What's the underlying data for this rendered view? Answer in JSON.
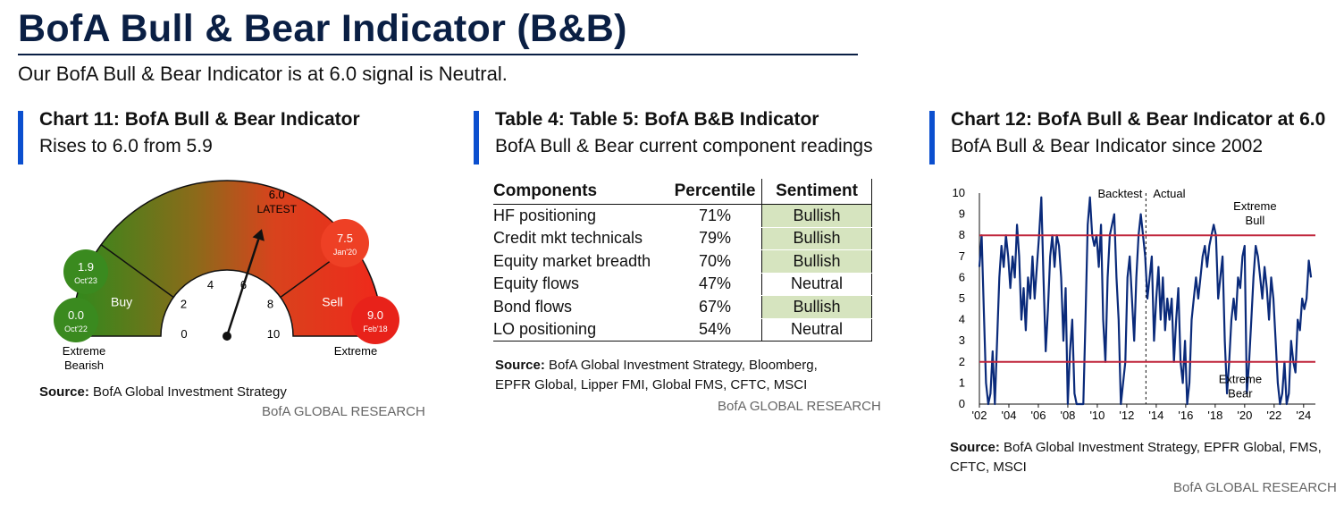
{
  "page": {
    "title": "BofA Bull & Bear Indicator (B&B)",
    "subtitle": "Our BofA Bull & Bear Indicator is at 6.0 signal is Neutral."
  },
  "panels": [
    {
      "title": "Chart 11: BofA Bull & Bear Indicator",
      "subtitle": "Rises to 6.0 from 5.9",
      "source_label": "Source:",
      "source_text": "BofA Global Investment Strategy",
      "brand": "BofA GLOBAL RESEARCH"
    },
    {
      "title": "Table 4: Table 5: BofA B&B Indicator",
      "subtitle": "BofA Bull & Bear current component readings",
      "source_label": "Source:",
      "source_text": "BofA Global Investment Strategy, Bloomberg, EPFR Global, Lipper FMI, Global FMS, CFTC, MSCI",
      "brand": "BofA GLOBAL RESEARCH"
    },
    {
      "title": "Chart 12: BofA Bull & Bear Indicator at 6.0",
      "subtitle": "BofA Bull & Bear Indicator since 2002",
      "source_label": "Source:",
      "source_text": "BofA Global Investment Strategy, EPFR Global, FMS, CFTC, MSCI",
      "brand": "BofA GLOBAL RESEARCH"
    }
  ],
  "colors": {
    "title": "#0a1f44",
    "accent_bar": "#0b4fcf",
    "bullish_cell": "#d6e4bf",
    "green": "#3a8a1f",
    "red": "#e8221a",
    "series_line": "#0a2a7a",
    "threshold_line": "#c0263c"
  },
  "chart_data": [
    {
      "type": "gauge",
      "value": 6.0,
      "value_label": "6.0",
      "value_caption": "LATEST",
      "range": [
        0,
        10
      ],
      "ticks": [
        "0",
        "2",
        "4",
        "6",
        "8",
        "10"
      ],
      "zones": [
        {
          "label": "Buy",
          "range": [
            0,
            2
          ],
          "caption": "Extreme Bearish"
        },
        {
          "label": "Sell",
          "range": [
            8,
            10
          ],
          "caption": "Extreme"
        }
      ],
      "markers": [
        {
          "value": "1.9",
          "date": "Oct'23",
          "color": "#3a8a1f"
        },
        {
          "value": "0.0",
          "date": "Oct'22",
          "color": "#3a8a1f"
        },
        {
          "value": "7.5",
          "date": "Jan'20",
          "color": "#ee4025"
        },
        {
          "value": "9.0",
          "date": "Feb'18",
          "color": "#e8221a"
        }
      ]
    },
    {
      "type": "table",
      "columns": [
        "Components",
        "Percentile",
        "Sentiment"
      ],
      "rows": [
        {
          "component": "HF positioning",
          "percentile": "71%",
          "sentiment": "Bullish"
        },
        {
          "component": "Credit mkt technicals",
          "percentile": "79%",
          "sentiment": "Bullish"
        },
        {
          "component": "Equity market breadth",
          "percentile": "70%",
          "sentiment": "Bullish"
        },
        {
          "component": "Equity flows",
          "percentile": "47%",
          "sentiment": "Neutral"
        },
        {
          "component": "Bond flows",
          "percentile": "67%",
          "sentiment": "Bullish"
        },
        {
          "component": "LO positioning",
          "percentile": "54%",
          "sentiment": "Neutral"
        }
      ]
    },
    {
      "type": "line",
      "x_tick_labels": [
        "'02",
        "'04",
        "'06",
        "'08",
        "'10",
        "'12",
        "'14",
        "'16",
        "'18",
        "'20",
        "'22",
        "'24"
      ],
      "xlim": [
        2002,
        2024.8
      ],
      "ylim": [
        0,
        10
      ],
      "y_ticks": [
        "0",
        "1",
        "2",
        "3",
        "4",
        "5",
        "6",
        "7",
        "8",
        "9",
        "10"
      ],
      "thresholds": [
        {
          "y": 8,
          "label": "Extreme Bull"
        },
        {
          "y": 2,
          "label": "Extreme Bear"
        }
      ],
      "divider": {
        "x": 2013.3,
        "left_label": "Backtest",
        "right_label": "Actual"
      },
      "grid": false,
      "series": [
        {
          "x": [
            2002.0,
            2002.15,
            2002.3,
            2002.45,
            2002.6,
            2002.75,
            2002.9,
            2003.05,
            2003.2,
            2003.35,
            2003.5,
            2003.65,
            2003.8,
            2003.95,
            2004.1,
            2004.25,
            2004.4,
            2004.55,
            2004.7,
            2004.85,
            2005.0,
            2005.15,
            2005.3,
            2005.45,
            2005.6,
            2005.75,
            2005.9,
            2006.05,
            2006.2,
            2006.35,
            2006.5,
            2006.65,
            2006.8,
            2006.95,
            2007.1,
            2007.25,
            2007.4,
            2007.55,
            2007.7,
            2007.85,
            2008.0,
            2008.15,
            2008.3,
            2008.45,
            2008.6,
            2008.75,
            2008.9,
            2009.05,
            2009.2,
            2009.35,
            2009.5,
            2009.65,
            2009.8,
            2009.95,
            2010.1,
            2010.25,
            2010.4,
            2010.55,
            2010.7,
            2010.85,
            2011.0,
            2011.15,
            2011.3,
            2011.45,
            2011.6,
            2011.75,
            2011.9,
            2012.05,
            2012.2,
            2012.35,
            2012.5,
            2012.65,
            2012.8,
            2012.95,
            2013.1,
            2013.25,
            2013.4,
            2013.55,
            2013.7,
            2013.85,
            2014.0,
            2014.15,
            2014.3,
            2014.45,
            2014.6,
            2014.75,
            2014.9,
            2015.05,
            2015.2,
            2015.35,
            2015.5,
            2015.65,
            2015.8,
            2015.95,
            2016.1,
            2016.25,
            2016.4,
            2016.55,
            2016.7,
            2016.85,
            2017.0,
            2017.15,
            2017.3,
            2017.45,
            2017.6,
            2017.75,
            2017.9,
            2018.05,
            2018.2,
            2018.35,
            2018.5,
            2018.65,
            2018.8,
            2018.95,
            2019.1,
            2019.25,
            2019.4,
            2019.55,
            2019.7,
            2019.85,
            2020.0,
            2020.15,
            2020.3,
            2020.45,
            2020.6,
            2020.75,
            2020.9,
            2021.05,
            2021.2,
            2021.35,
            2021.5,
            2021.65,
            2021.8,
            2021.95,
            2022.1,
            2022.25,
            2022.4,
            2022.55,
            2022.7,
            2022.85,
            2023.0,
            2023.15,
            2023.3,
            2023.45,
            2023.6,
            2023.75,
            2023.9,
            2024.05,
            2024.2,
            2024.35,
            2024.5
          ],
          "values": [
            6.5,
            8.0,
            4.5,
            1.0,
            0.0,
            0.5,
            2.5,
            0.0,
            3.0,
            6.0,
            7.5,
            6.5,
            8.0,
            7.0,
            5.5,
            7.0,
            6.0,
            8.5,
            7.0,
            4.0,
            5.5,
            3.5,
            6.0,
            5.0,
            7.0,
            5.0,
            6.5,
            8.0,
            9.8,
            6.0,
            2.5,
            4.5,
            7.0,
            8.0,
            6.5,
            8.0,
            7.5,
            6.0,
            3.0,
            5.5,
            0.0,
            2.5,
            4.0,
            0.5,
            0.0,
            0.0,
            0.0,
            0.0,
            4.0,
            8.5,
            9.8,
            8.0,
            7.5,
            8.0,
            6.5,
            8.5,
            4.0,
            2.0,
            6.0,
            8.0,
            8.5,
            9.0,
            6.0,
            4.0,
            0.0,
            1.0,
            2.0,
            6.0,
            7.0,
            5.0,
            3.0,
            6.0,
            8.0,
            9.0,
            8.0,
            7.0,
            5.0,
            6.0,
            7.0,
            3.0,
            5.0,
            6.5,
            4.0,
            6.0,
            3.5,
            5.0,
            4.0,
            5.0,
            2.0,
            4.0,
            5.5,
            2.0,
            1.0,
            3.0,
            0.0,
            1.0,
            4.0,
            5.0,
            6.0,
            5.0,
            6.0,
            7.0,
            7.5,
            6.5,
            7.5,
            8.0,
            8.5,
            8.0,
            5.0,
            6.0,
            7.0,
            3.0,
            0.5,
            2.0,
            4.0,
            5.0,
            4.0,
            6.0,
            5.5,
            7.0,
            7.5,
            0.5,
            2.0,
            4.0,
            6.0,
            7.5,
            7.0,
            6.0,
            5.0,
            6.5,
            5.5,
            4.0,
            6.0,
            5.0,
            3.0,
            1.0,
            0.0,
            0.5,
            2.0,
            0.0,
            0.5,
            3.0,
            2.0,
            1.5,
            4.0,
            3.5,
            5.0,
            4.5,
            5.0,
            6.8,
            6.0
          ]
        }
      ]
    }
  ]
}
